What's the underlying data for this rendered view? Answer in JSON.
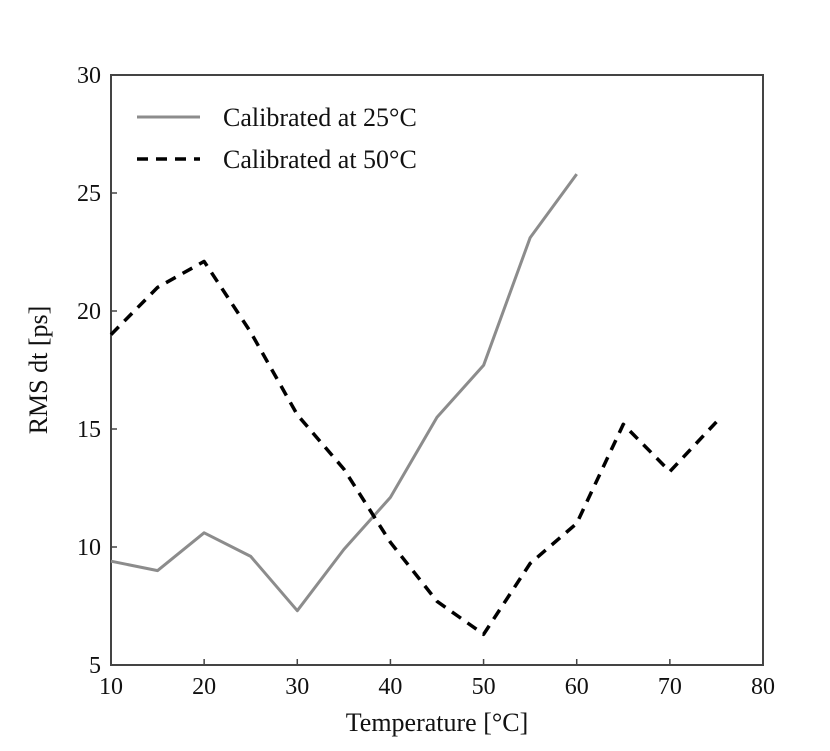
{
  "chart_data": {
    "type": "line",
    "title": "",
    "xlabel": "Temperature [°C]",
    "ylabel": "RMS dt [ps]",
    "xlim": [
      10,
      80
    ],
    "ylim": [
      5,
      30
    ],
    "xticks": [
      10,
      20,
      30,
      40,
      50,
      60,
      70,
      80
    ],
    "yticks": [
      5,
      10,
      15,
      20,
      25,
      30
    ],
    "grid": false,
    "legend_position": "top-left",
    "series": [
      {
        "name": "Calibrated at 25°C",
        "style": "solid",
        "color": "#8c8c8c",
        "x": [
          10,
          15,
          20,
          25,
          30,
          35,
          40,
          45,
          50,
          55,
          60
        ],
        "y": [
          9.4,
          9.0,
          10.6,
          9.6,
          7.3,
          9.9,
          12.1,
          15.5,
          17.7,
          23.1,
          25.8
        ]
      },
      {
        "name": "Calibrated at 50°C",
        "style": "dashed",
        "color": "#000000",
        "x": [
          10,
          15,
          20,
          25,
          30,
          35,
          40,
          45,
          50,
          55,
          60,
          65,
          70,
          75
        ],
        "y": [
          19.0,
          21.0,
          22.1,
          19.1,
          15.6,
          13.3,
          10.2,
          7.7,
          6.3,
          9.3,
          11.0,
          15.2,
          13.2,
          15.3
        ]
      }
    ]
  }
}
